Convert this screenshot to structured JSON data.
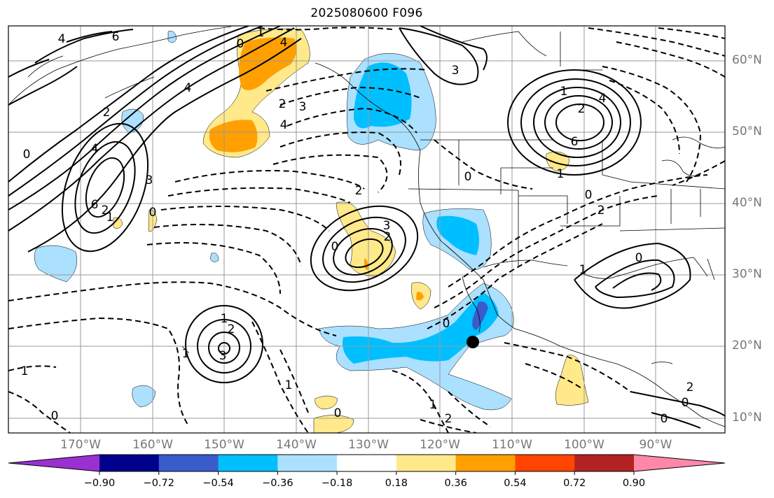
{
  "title": "2025080600 F096",
  "lat_labels": [
    "60°N",
    "50°N",
    "40°N",
    "30°N",
    "20°N",
    "10°N"
  ],
  "lon_labels": [
    "170°W",
    "160°W",
    "150°W",
    "140°W",
    "130°W",
    "120°W",
    "110°W",
    "100°W",
    "90°W"
  ],
  "colorbar": {
    "colors": [
      "#9b30d0",
      "#00008b",
      "#3a5bcc",
      "#00bfff",
      "#abe0ff",
      "#ffffff",
      "#ffe98a",
      "#ffa000",
      "#ff4500",
      "#b22222",
      "#ff88aa"
    ],
    "tick_labels": [
      "−0.90",
      "−0.72",
      "−0.54",
      "−0.36",
      "−0.18",
      "0.18",
      "0.36",
      "0.54",
      "0.72",
      "0.90"
    ]
  },
  "contour_labels": [
    {
      "text": "4"
    },
    {
      "text": "6"
    },
    {
      "text": "0"
    },
    {
      "text": "1"
    },
    {
      "text": "4"
    },
    {
      "text": "2"
    },
    {
      "text": "0"
    },
    {
      "text": "4"
    },
    {
      "text": "6"
    },
    {
      "text": "3"
    },
    {
      "text": "0"
    },
    {
      "text": "1"
    },
    {
      "text": "1"
    },
    {
      "text": "2"
    },
    {
      "text": "3"
    },
    {
      "text": "4"
    },
    {
      "text": "2"
    },
    {
      "text": "3"
    },
    {
      "text": "2"
    },
    {
      "text": "0"
    },
    {
      "text": "3"
    },
    {
      "text": "4"
    },
    {
      "text": "3"
    },
    {
      "text": "6"
    },
    {
      "text": "4"
    },
    {
      "text": "2"
    },
    {
      "text": "1"
    },
    {
      "text": "0"
    },
    {
      "text": "0"
    },
    {
      "text": "2"
    },
    {
      "text": "1"
    },
    {
      "text": "2"
    },
    {
      "text": "0"
    },
    {
      "text": "1"
    },
    {
      "text": "2"
    },
    {
      "text": "2"
    },
    {
      "text": "0"
    },
    {
      "text": "1"
    },
    {
      "text": "0"
    },
    {
      "text": "1"
    },
    {
      "text": "1"
    },
    {
      "text": "0"
    },
    {
      "text": "0"
    },
    {
      "text": "0"
    },
    {
      "text": "1"
    },
    {
      "text": "2"
    }
  ],
  "marker": {
    "name": "point-marker",
    "color": "#000000"
  }
}
